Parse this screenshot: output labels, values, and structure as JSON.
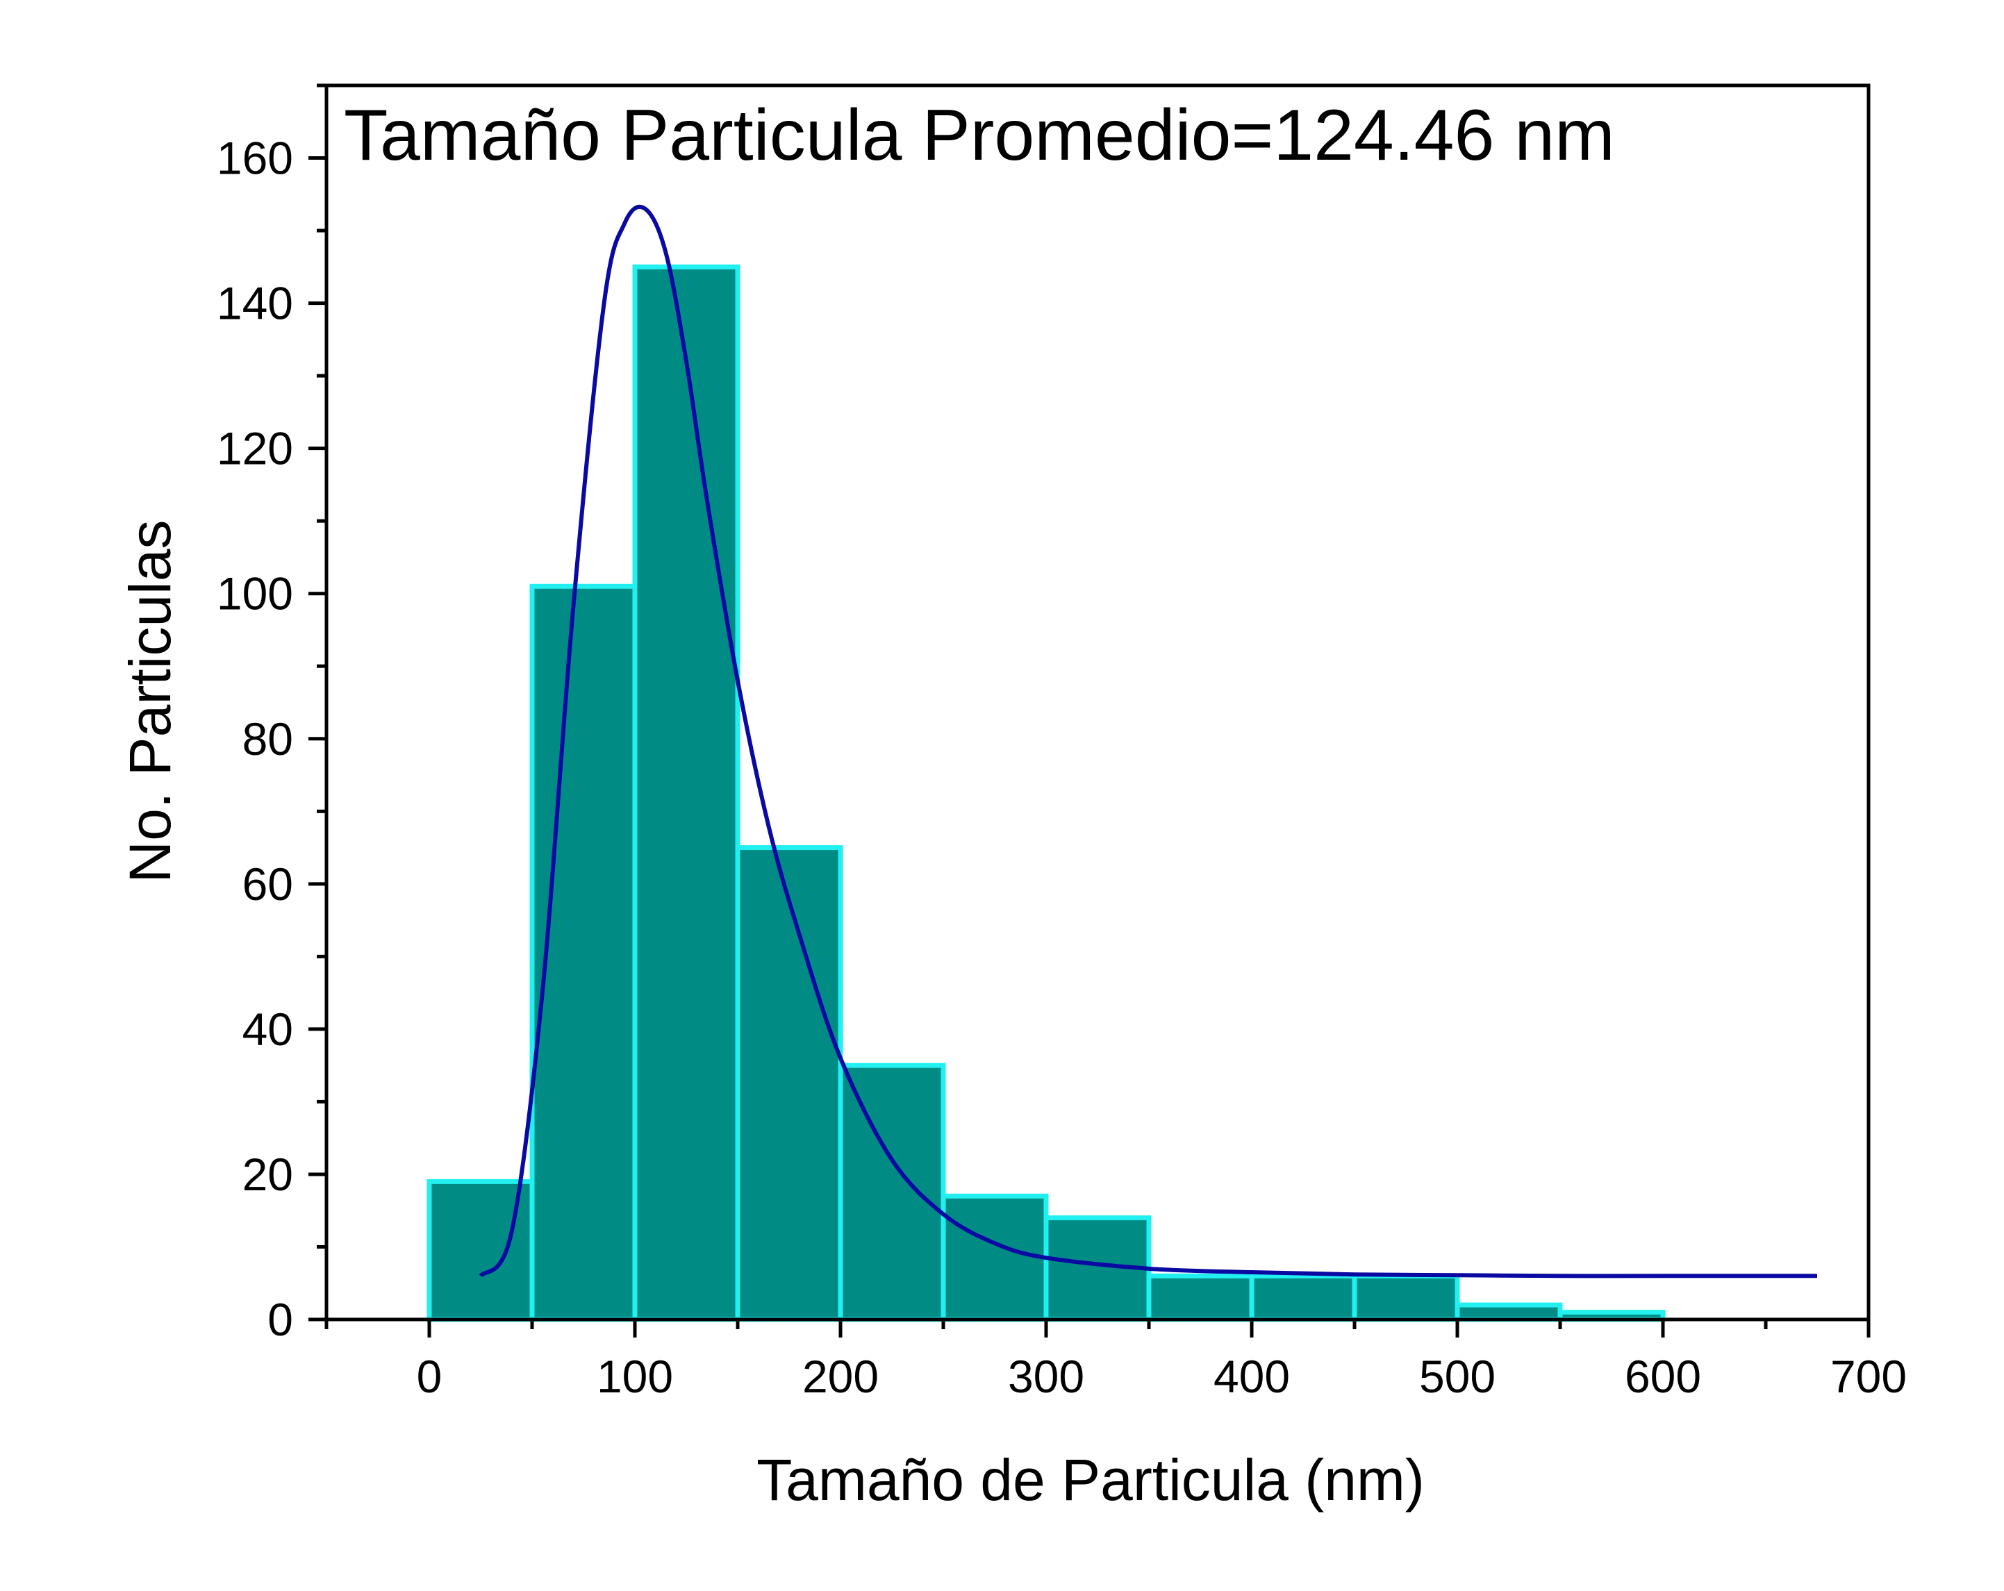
{
  "chart_data": {
    "type": "bar",
    "annotation": "Tamaño Particula Promedio=124.46 nm",
    "xlabel": "Tamaño de Particula (nm)",
    "ylabel": "No. Particulas",
    "xlim": [
      -50,
      700
    ],
    "ylim": [
      0,
      170
    ],
    "xticks": [
      0,
      100,
      200,
      300,
      400,
      500,
      600,
      700
    ],
    "yticks": [
      0,
      20,
      40,
      60,
      80,
      100,
      120,
      140,
      160
    ],
    "bin_width": 50,
    "bins": [
      {
        "start": 0,
        "end": 50,
        "count": 19
      },
      {
        "start": 50,
        "end": 100,
        "count": 101
      },
      {
        "start": 100,
        "end": 150,
        "count": 145
      },
      {
        "start": 150,
        "end": 200,
        "count": 65
      },
      {
        "start": 200,
        "end": 250,
        "count": 35
      },
      {
        "start": 250,
        "end": 300,
        "count": 17
      },
      {
        "start": 300,
        "end": 350,
        "count": 14
      },
      {
        "start": 350,
        "end": 400,
        "count": 6
      },
      {
        "start": 400,
        "end": 450,
        "count": 6
      },
      {
        "start": 450,
        "end": 500,
        "count": 6
      },
      {
        "start": 500,
        "end": 550,
        "count": 2
      },
      {
        "start": 550,
        "end": 600,
        "count": 1
      }
    ],
    "fit_curve": {
      "x": [
        25,
        40,
        55,
        70,
        85,
        95,
        105,
        115,
        125,
        135,
        150,
        165,
        180,
        200,
        225,
        250,
        275,
        300,
        350,
        400,
        450,
        500,
        550,
        600,
        675
      ],
      "y": [
        6,
        12,
        45,
        98,
        140,
        151,
        153,
        147,
        132,
        113,
        88,
        68,
        53,
        36,
        22,
        14.5,
        10.5,
        8.5,
        7,
        6.5,
        6.2,
        6.1,
        6.0,
        6.0,
        6.0
      ]
    },
    "colors": {
      "bar_fill": "#008b85",
      "bar_edge": "#22f0f0",
      "curve": "#0a0aa3",
      "axis": "#000000"
    },
    "grid": false
  }
}
